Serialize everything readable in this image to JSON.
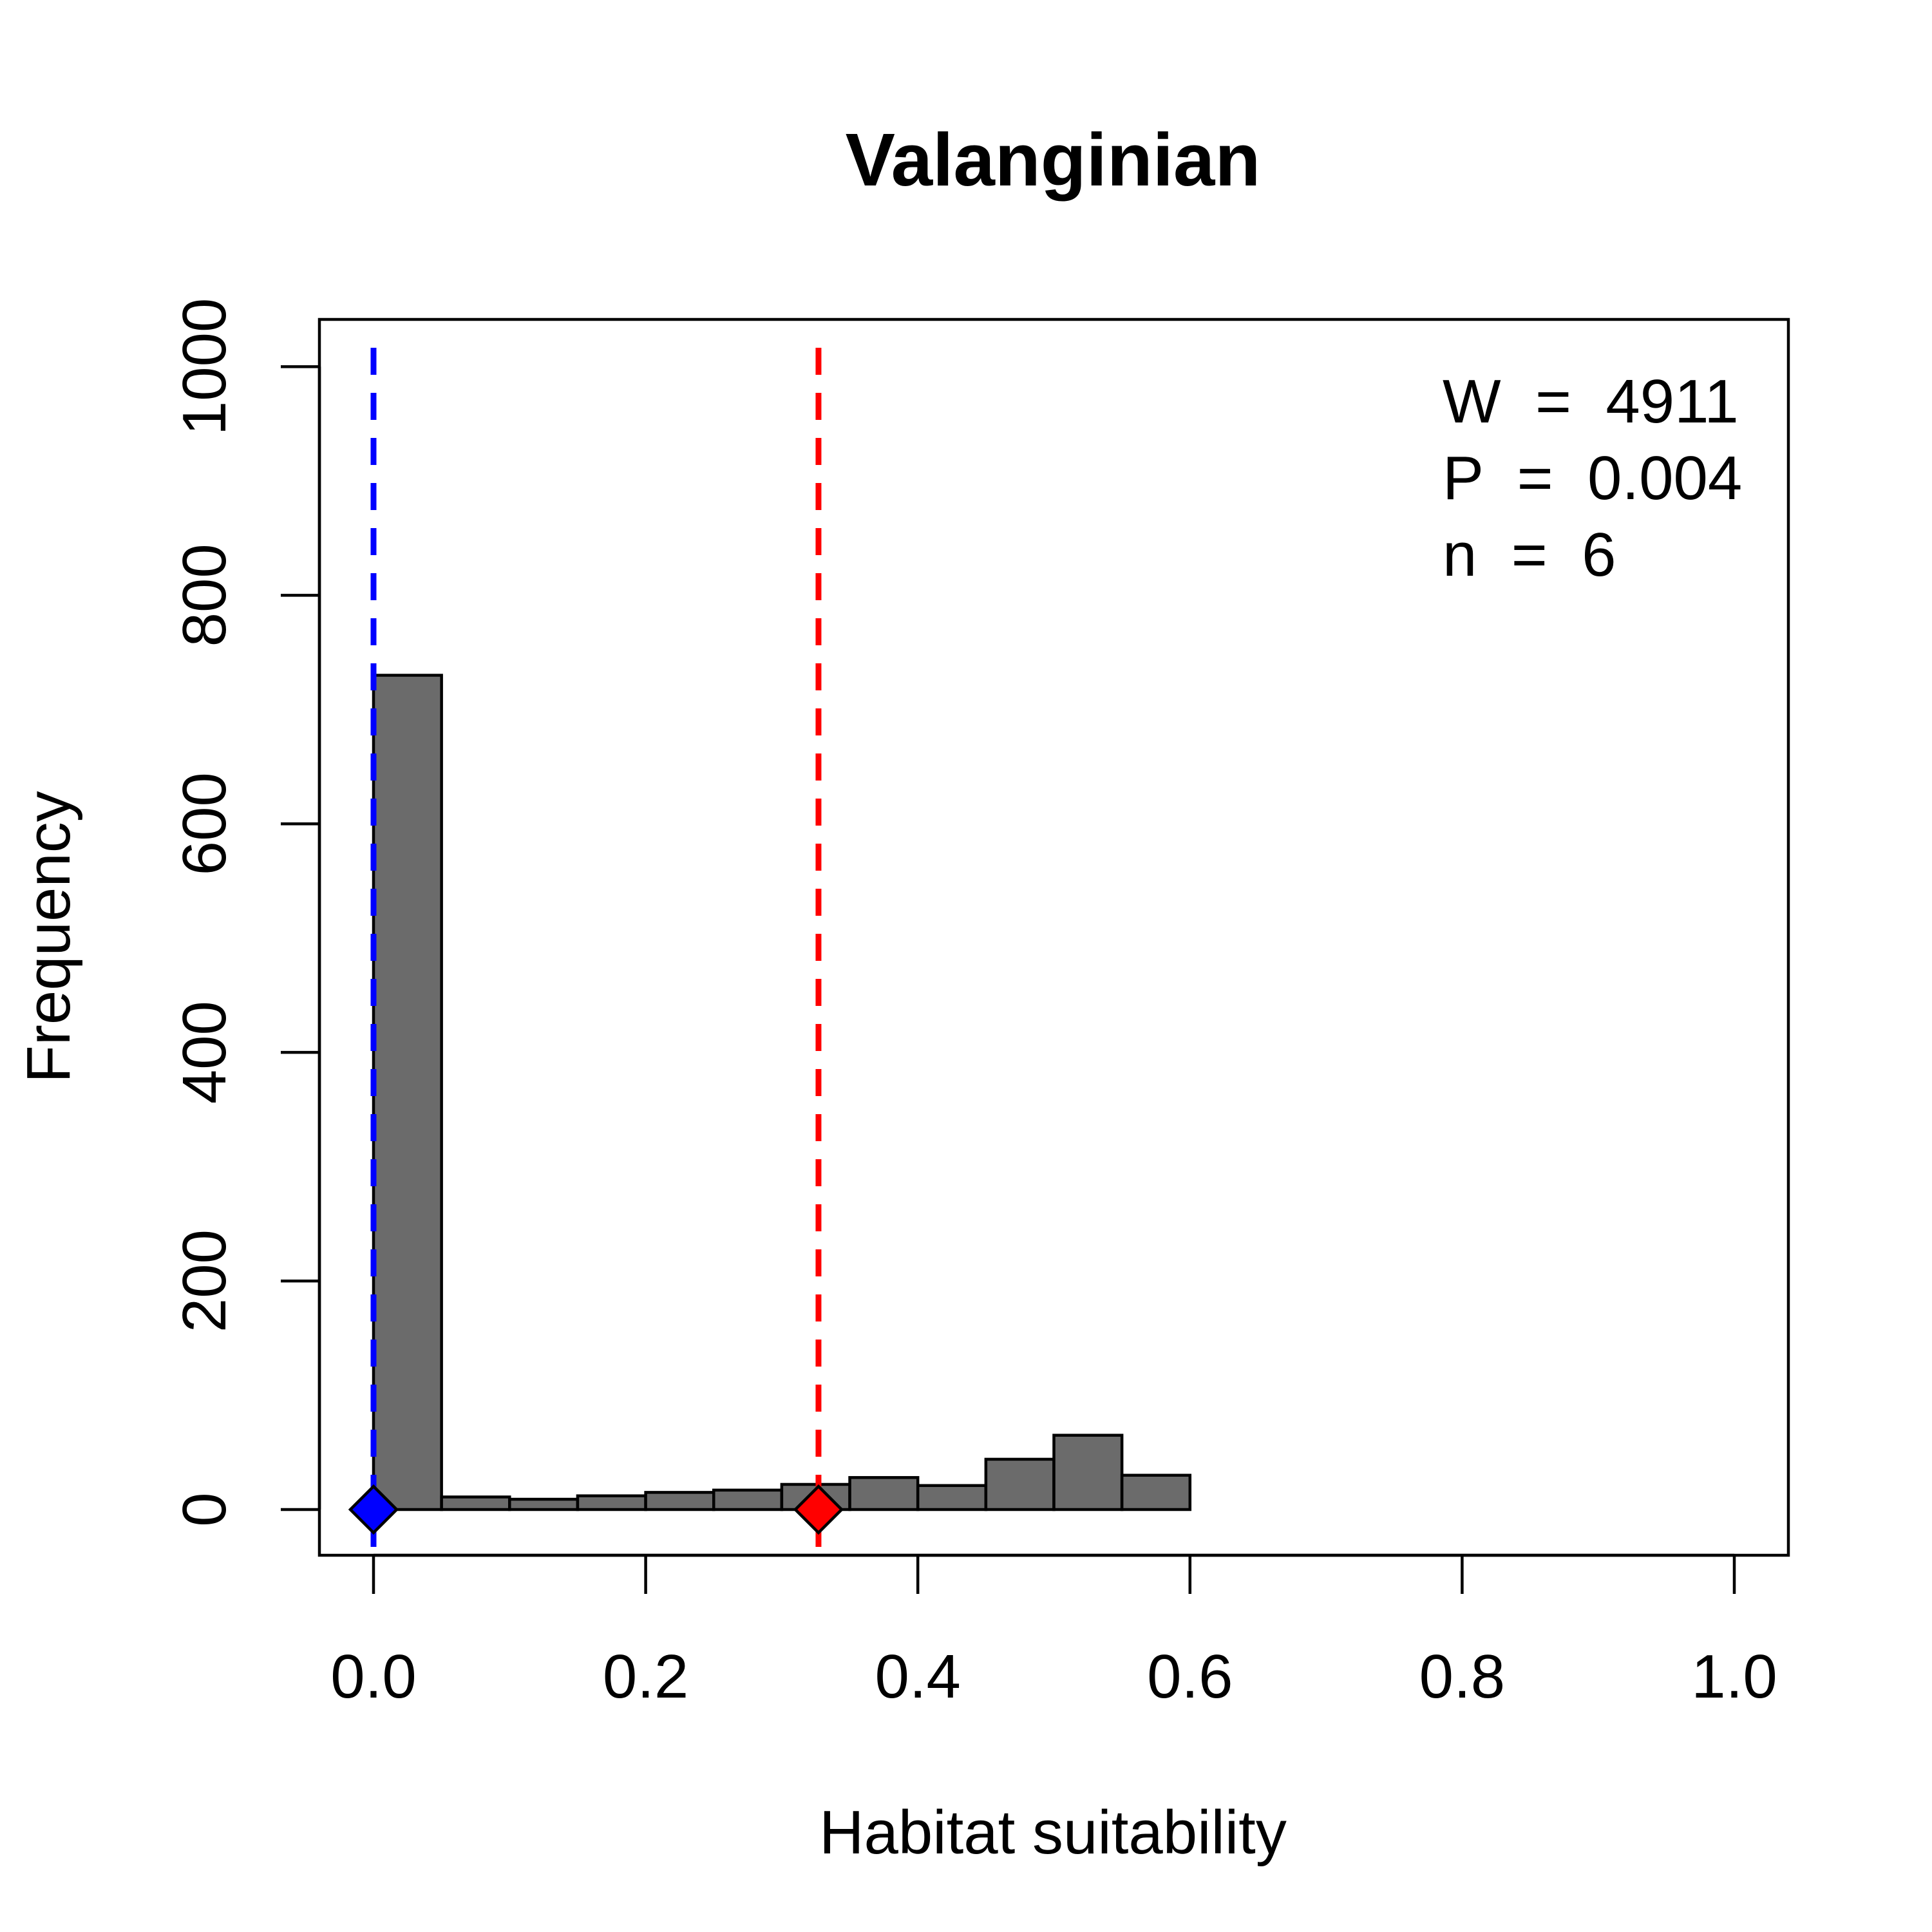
{
  "chart_data": {
    "type": "bar",
    "subtype": "histogram",
    "title": "Valanginian",
    "xlabel": "Habitat suitability",
    "ylabel": "Frequency",
    "xlim": [
      0,
      1
    ],
    "ylim": [
      0,
      1000
    ],
    "x_ticks": [
      0,
      0.2,
      0.4,
      0.6,
      0.8,
      1.0
    ],
    "x_tick_labels": [
      "0.0",
      "0.2",
      "0.4",
      "0.6",
      "0.8",
      "1.0"
    ],
    "y_ticks": [
      0,
      200,
      400,
      600,
      800,
      1000
    ],
    "y_tick_labels": [
      "0",
      "200",
      "400",
      "600",
      "800",
      "1000"
    ],
    "bin_width": 0.05,
    "bins": [
      {
        "x0": 0.0,
        "x1": 0.05,
        "count": 730
      },
      {
        "x0": 0.05,
        "x1": 0.1,
        "count": 11
      },
      {
        "x0": 0.1,
        "x1": 0.15,
        "count": 9
      },
      {
        "x0": 0.15,
        "x1": 0.2,
        "count": 12
      },
      {
        "x0": 0.2,
        "x1": 0.25,
        "count": 15
      },
      {
        "x0": 0.25,
        "x1": 0.3,
        "count": 17
      },
      {
        "x0": 0.3,
        "x1": 0.35,
        "count": 22
      },
      {
        "x0": 0.35,
        "x1": 0.4,
        "count": 28
      },
      {
        "x0": 0.4,
        "x1": 0.45,
        "count": 21
      },
      {
        "x0": 0.45,
        "x1": 0.5,
        "count": 44
      },
      {
        "x0": 0.5,
        "x1": 0.55,
        "count": 65
      },
      {
        "x0": 0.55,
        "x1": 0.6,
        "count": 30
      }
    ],
    "bar_color": "#6b6b6b",
    "reference_lines": [
      {
        "x": 0.0,
        "color": "#0000ff",
        "style": "dashed"
      },
      {
        "x": 0.327,
        "color": "#ff0000",
        "style": "dashed"
      }
    ],
    "markers": [
      {
        "x": 0.0,
        "y": 0,
        "shape": "diamond",
        "color": "#0000ff"
      },
      {
        "x": 0.327,
        "y": 0,
        "shape": "diamond",
        "color": "#ff0000"
      }
    ],
    "annotations": [
      "W  =  4911",
      "P  =  0.004",
      "n  =  6"
    ],
    "annotation_placement": "top-right",
    "grid": false
  }
}
